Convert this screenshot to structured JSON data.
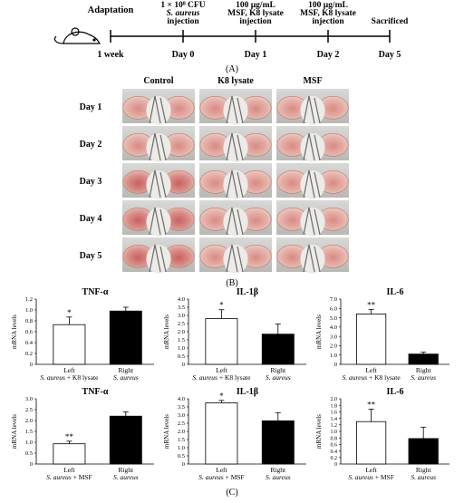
{
  "panel_a": {
    "label": "(A)",
    "events": [
      {
        "top": "",
        "bottom": "1 week"
      },
      {
        "top": "1 × 10⁸ CFU|S. aureus|injection",
        "bottom": "Day 0"
      },
      {
        "top": "100 μg/mL|MSF, K8 lysate|injection",
        "bottom": "Day 1"
      },
      {
        "top": "100 μg/mL|MSF, K8 lysate|injection",
        "bottom": "Day 2"
      },
      {
        "top": "Sacrificed",
        "bottom": "Day 5"
      }
    ],
    "start_label": "Adaptation",
    "mouse_icon": "mouse-icon"
  },
  "panel_b": {
    "label": "(B)",
    "columns": [
      "Control",
      "K8 lysate",
      "MSF"
    ],
    "rows": [
      "Day 1",
      "Day 2",
      "Day 3",
      "Day 4",
      "Day 5"
    ]
  },
  "panel_c": {
    "label": "(C)",
    "chart_data": [
      {
        "type": "bar",
        "title": "TNF-α",
        "ylabel": "mRNA levels",
        "ylim": [
          0,
          1.2
        ],
        "yticks": [
          "0",
          "0.2",
          "0.4",
          "0.6",
          "0.8",
          "1.0",
          "1.2"
        ],
        "categories": [
          "Left",
          "Right"
        ],
        "sublabels": [
          "S. aureus + K8 lysate",
          "S. aureus"
        ],
        "values": [
          0.73,
          0.98
        ],
        "errors": [
          0.14,
          0.07
        ],
        "marks": [
          "*",
          ""
        ]
      },
      {
        "type": "bar",
        "title": "IL-1β",
        "ylabel": "mRNA levels",
        "ylim": [
          0,
          4.0
        ],
        "yticks": [
          "0",
          "0.5",
          "1.0",
          "1.5",
          "2.0",
          "2.5",
          "3.0",
          "3.5",
          "4.0"
        ],
        "categories": [
          "Left",
          "Right"
        ],
        "sublabels": [
          "S. aureus + K8 lysate",
          "S. aureus"
        ],
        "values": [
          2.8,
          1.85
        ],
        "errors": [
          0.55,
          0.62
        ],
        "marks": [
          "*",
          ""
        ]
      },
      {
        "type": "bar",
        "title": "IL-6",
        "ylabel": "mRNA levels",
        "ylim": [
          0,
          7.0
        ],
        "yticks": [
          "0",
          "1.0",
          "2.0",
          "3.0",
          "4.0",
          "5.0",
          "6.0",
          "7.0"
        ],
        "categories": [
          "Left",
          "Right"
        ],
        "sublabels": [
          "S. aureus + K8 lysate",
          "S. aureus"
        ],
        "values": [
          5.4,
          1.1
        ],
        "errors": [
          0.5,
          0.2
        ],
        "marks": [
          "**",
          ""
        ]
      },
      {
        "type": "bar",
        "title": "TNF-α",
        "ylabel": "mRNA levels",
        "ylim": [
          0,
          3.0
        ],
        "yticks": [
          "0",
          "0.5",
          "1.0",
          "1.5",
          "2.0",
          "2.5",
          "3.0"
        ],
        "categories": [
          "Left",
          "Right"
        ],
        "sublabels": [
          "S. aureus + MSF",
          "S. aureus"
        ],
        "values": [
          0.93,
          2.2
        ],
        "errors": [
          0.12,
          0.2
        ],
        "marks": [
          "**",
          ""
        ]
      },
      {
        "type": "bar",
        "title": "IL-1β",
        "ylabel": "mRNA levels",
        "ylim": [
          0,
          4.0
        ],
        "yticks": [
          "0",
          "0.5",
          "1.0",
          "1.5",
          "2.0",
          "2.5",
          "3.0",
          "3.5",
          "4.0"
        ],
        "categories": [
          "Left",
          "Right"
        ],
        "sublabels": [
          "S. aureus + MSF",
          "S. aureus"
        ],
        "values": [
          3.75,
          2.65
        ],
        "errors": [
          0.15,
          0.5
        ],
        "marks": [
          "*",
          ""
        ]
      },
      {
        "type": "bar",
        "title": "IL-6",
        "ylabel": "mRNA levels",
        "ylim": [
          0,
          2.0
        ],
        "yticks": [
          "0",
          "0.2",
          "0.4",
          "0.6",
          "0.8",
          "1.0",
          "1.2",
          "1.4",
          "1.6",
          "1.8",
          "2.0"
        ],
        "categories": [
          "Left",
          "Right"
        ],
        "sublabels": [
          "S. aureus + MSF",
          "S. aureus"
        ],
        "values": [
          1.3,
          0.78
        ],
        "errors": [
          0.38,
          0.35
        ],
        "marks": [
          "**",
          ""
        ]
      }
    ]
  }
}
